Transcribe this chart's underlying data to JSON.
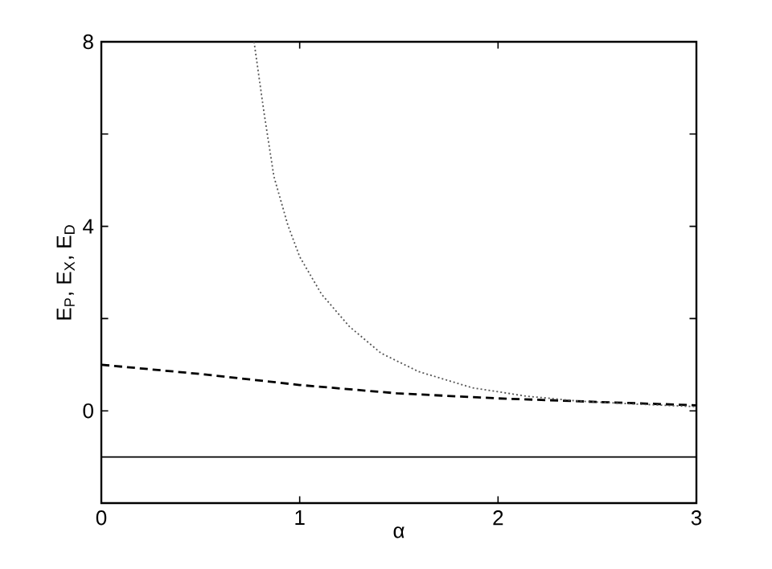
{
  "chart_data": {
    "type": "line",
    "xlabel": "α",
    "ylabel": "E$_{P}$, E$_{X}$, E$_{D}$",
    "xlim": [
      0,
      3
    ],
    "ylim": [
      -2,
      8
    ],
    "xticks": [
      0,
      1,
      2,
      3
    ],
    "yticks": [
      0,
      {
        "value": 2,
        "label": null
      },
      4,
      {
        "value": 6,
        "label": null
      },
      8
    ],
    "marker": "none",
    "series": [
      {
        "color": "#000000",
        "line_style": "solid",
        "x": [
          0,
          3
        ],
        "values": [
          -1,
          -1
        ]
      },
      {
        "color": "#000000",
        "line_style": "dashed",
        "x": [
          0,
          0.52,
          1,
          1.49,
          2,
          2.52,
          3
        ],
        "values": [
          1.0,
          0.79,
          0.56,
          0.38,
          0.27,
          0.19,
          0.12
        ]
      },
      {
        "color": "#555555",
        "line_style": "dotted",
        "x": [
          0.77,
          0.82,
          0.87,
          0.94,
          1.0,
          1.11,
          1.25,
          1.41,
          1.6,
          1.87,
          2.14,
          2.41,
          2.68,
          3
        ],
        "values": [
          8,
          6.47,
          5.08,
          4.03,
          3.34,
          2.53,
          1.83,
          1.25,
          0.85,
          0.5,
          0.32,
          0.21,
          0.15,
          0.09
        ]
      }
    ]
  }
}
